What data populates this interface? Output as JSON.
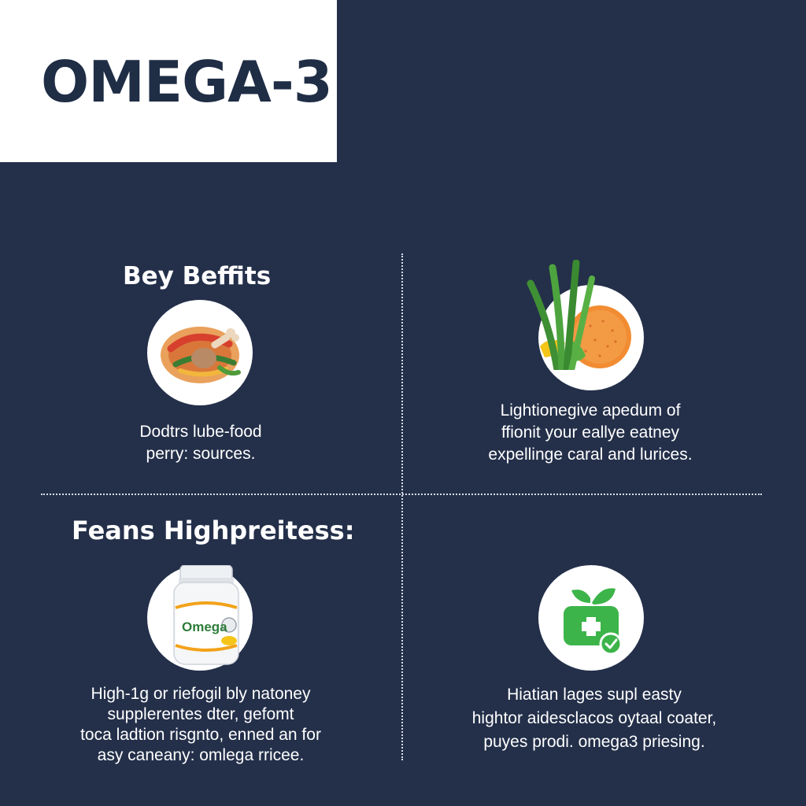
{
  "title": "OMEGA-3",
  "sections": [
    {
      "heading": "Bey Beffits",
      "icon": "food-plate-icon",
      "lines": [
        "Dodtrs lube-food",
        "perry: sources."
      ]
    },
    {
      "heading": "",
      "icon": "fruit-vegetables-icon",
      "lines": [
        "Lightionegive apedum of",
        "ffionit your eallye eatney",
        "expellinge caral and lurices."
      ]
    },
    {
      "heading": "Feans Highpreitess:",
      "icon": "omega-supplement-bottle-icon",
      "bottle_label": "Omega",
      "lines": [
        "High-1g or riefogil bly  natoney",
        "supplerentes dter, gefomt",
        "toca ladtion risgnto, enned an for",
        "asy caneany: omlega rricee."
      ]
    },
    {
      "heading": "",
      "icon": "green-health-leaf-icon",
      "lines": [
        "Hiatian lages supl easty",
        "hightor aidesclacos oytaal coater,",
        "puyes prodi. omega3 priesing."
      ]
    }
  ],
  "colors": {
    "background": "#24304a",
    "title_box": "#ffffff",
    "title_text": "#1f2d45",
    "accent_green": "#3cb44a",
    "accent_orange": "#f08a2e"
  }
}
